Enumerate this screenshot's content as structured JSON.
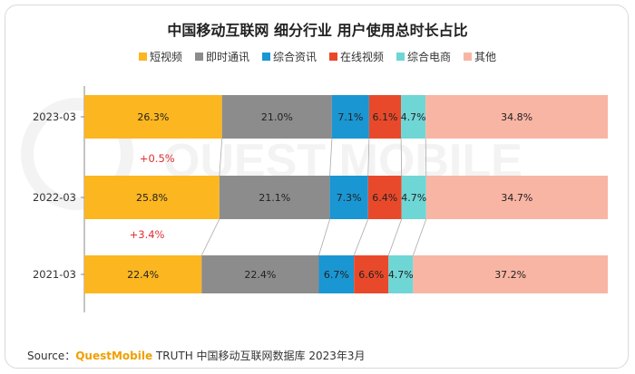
{
  "title": "中国移动互联网 细分行业 用户使用总时长占比",
  "source": {
    "prefix": "Source：",
    "brand": "QuestMobile",
    "suffix": " TRUTH 中国移动互联网数据库 2023年3月"
  },
  "watermark_text": "QUEST MOBILE",
  "colors": {
    "短视频": "#fcb620",
    "即时通讯": "#8c8c8c",
    "综合资讯": "#1a96d2",
    "在线视频": "#e9492b",
    "综合电商": "#6fd6d6",
    "其他": "#f9b5a4",
    "annotation": "#e03030"
  },
  "chart_data": {
    "type": "bar",
    "orientation": "horizontal",
    "stacked": true,
    "percent_stacked": true,
    "legend_position": "top",
    "categories": [
      "2023-03",
      "2022-03",
      "2021-03"
    ],
    "series": [
      {
        "name": "短视频",
        "values": [
          26.3,
          25.8,
          22.4
        ],
        "labels": [
          "26.3%",
          "25.8%",
          "22.4%"
        ]
      },
      {
        "name": "即时通讯",
        "values": [
          21.0,
          21.1,
          22.4
        ],
        "labels": [
          "21.0%",
          "21.1%",
          "22.4%"
        ]
      },
      {
        "name": "综合资讯",
        "values": [
          7.1,
          7.3,
          6.7
        ],
        "labels": [
          "7.1%",
          "7.3%",
          "6.7%"
        ]
      },
      {
        "name": "在线视频",
        "values": [
          6.1,
          6.4,
          6.6
        ],
        "labels": [
          "6.1%",
          "6.4%",
          "6.6%"
        ]
      },
      {
        "name": "综合电商",
        "values": [
          4.7,
          4.7,
          4.7
        ],
        "labels": [
          "4.7%",
          "4.7%",
          "4.7%"
        ]
      },
      {
        "name": "其他",
        "values": [
          34.8,
          34.7,
          37.2
        ],
        "labels": [
          "34.8%",
          "34.7%",
          "37.2%"
        ]
      }
    ],
    "annotations": [
      {
        "text": "+0.5%",
        "between": [
          "2023-03",
          "2022-03"
        ]
      },
      {
        "text": "+3.4%",
        "between": [
          "2022-03",
          "2021-03"
        ]
      }
    ]
  }
}
